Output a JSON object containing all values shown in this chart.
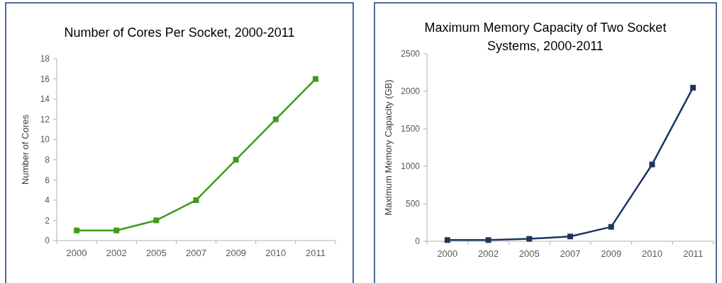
{
  "chart_data": [
    {
      "type": "line",
      "title": "Number of Cores Per Socket, 2000-2011",
      "ylabel": "Number of Cores",
      "categories": [
        "2000",
        "2002",
        "2005",
        "2007",
        "2009",
        "2010",
        "2011"
      ],
      "series": [
        {
          "color": "#3f9a1a",
          "values": [
            1,
            1,
            2,
            4,
            8,
            12,
            16
          ]
        }
      ],
      "ylim": [
        0,
        18
      ],
      "yticks": [
        0,
        2,
        4,
        6,
        8,
        10,
        12,
        14,
        16,
        18
      ],
      "marker": "square",
      "line_style": "solid",
      "grid": false
    },
    {
      "type": "line",
      "title": "Maximum Memory Capacity of Two Socket Systems, 2000-2011",
      "ylabel": "Maximum Memory Capacity (GB)",
      "categories": [
        "2000",
        "2002",
        "2005",
        "2007",
        "2009",
        "2010",
        "2011"
      ],
      "series": [
        {
          "color": "#1c3661",
          "values": [
            16,
            16,
            32,
            64,
            192,
            1024,
            2048
          ]
        }
      ],
      "ylim": [
        0,
        2500
      ],
      "yticks": [
        0,
        500,
        1000,
        1500,
        2000,
        2500
      ],
      "marker": "square",
      "line_style": "solid",
      "grid": false
    }
  ]
}
